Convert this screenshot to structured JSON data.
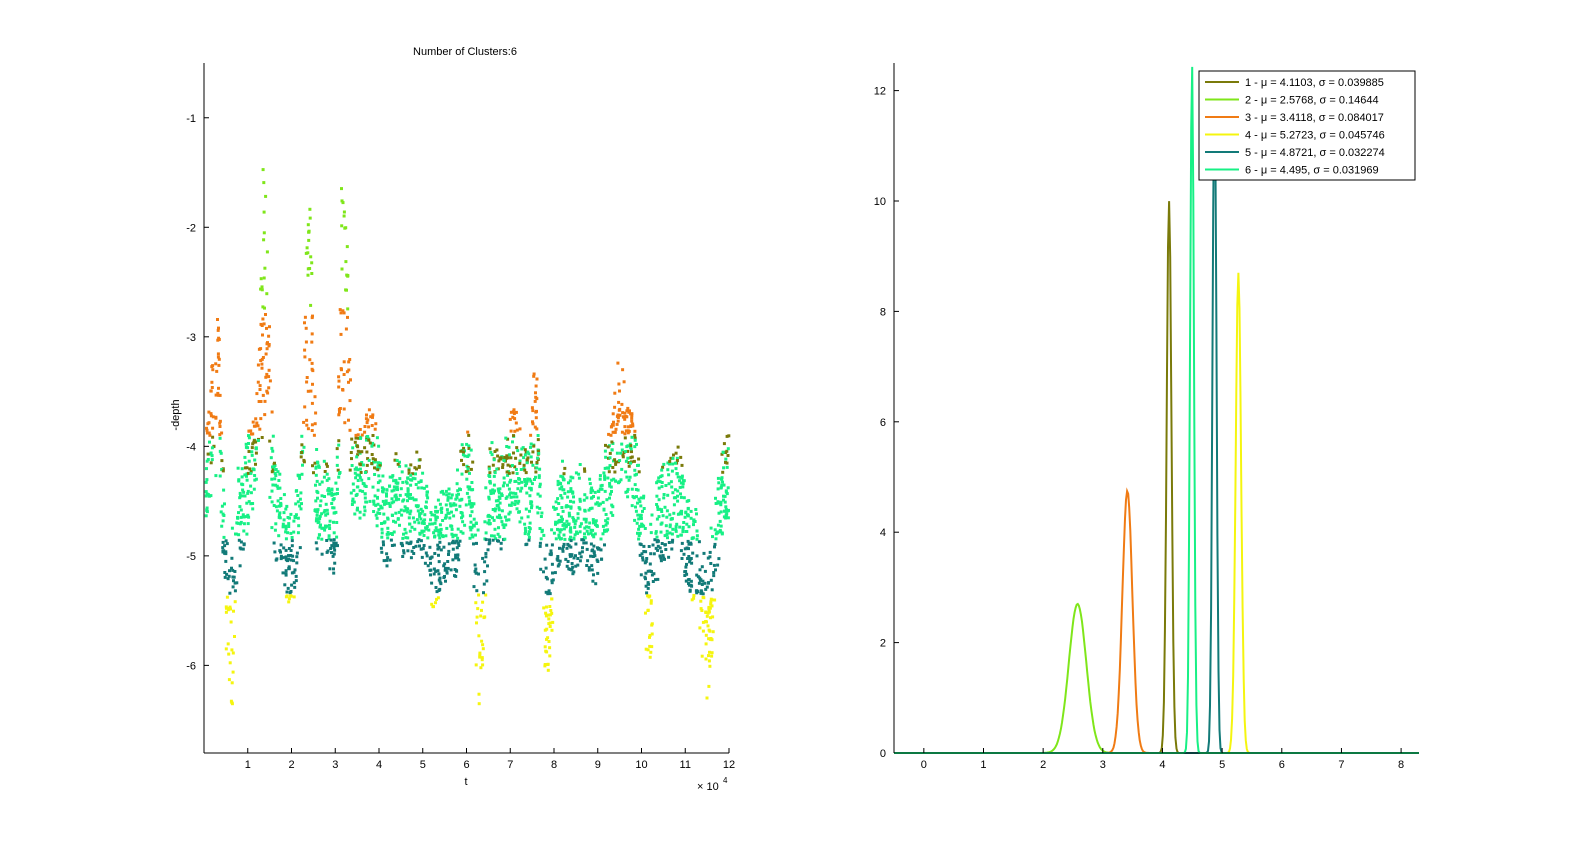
{
  "chart_data": [
    {
      "type": "scatter",
      "title": "Number of Clusters:6",
      "xlabel": "t",
      "ylabel": "-depth",
      "x_multiplier_label": "× 10",
      "x_multiplier_exponent": "4",
      "xlim": [
        0,
        12
      ],
      "ylim": [
        -6.8,
        -0.5
      ],
      "xticks": [
        "1",
        "2",
        "3",
        "4",
        "5",
        "6",
        "7",
        "8",
        "9",
        "10",
        "11",
        "12"
      ],
      "yticks": [
        "-1",
        "-2",
        "-3",
        "-4",
        "-5",
        "-6"
      ],
      "xtick_values": [
        1,
        2,
        3,
        4,
        5,
        6,
        7,
        8,
        9,
        10,
        11,
        12
      ],
      "ytick_values": [
        -1,
        -2,
        -3,
        -4,
        -5,
        -6
      ],
      "cluster_colors": [
        "#7a7a0a",
        "#7fe61a",
        "#f07b14",
        "#f5f50f",
        "#127a78",
        "#17f085"
      ],
      "cluster_bands": [
        {
          "cluster": 1,
          "y_range": [
            -4.3,
            -3.6
          ]
        },
        {
          "cluster": 2,
          "y_range": [
            -2.8,
            -1.1
          ]
        },
        {
          "cluster": 3,
          "y_range": [
            -4.2,
            -2.6
          ]
        },
        {
          "cluster": 4,
          "y_range": [
            -6.3,
            -5.35
          ]
        },
        {
          "cluster": 5,
          "y_range": [
            -5.4,
            -4.6
          ]
        },
        {
          "cluster": 6,
          "y_range": [
            -4.8,
            -4.0
          ]
        }
      ],
      "peaks": [
        {
          "x": 1.4,
          "y": -1.2
        },
        {
          "x": 2.4,
          "y": -1.2
        },
        {
          "x": 3.2,
          "y": -1.1
        },
        {
          "x": 0.3,
          "y": -2.8
        },
        {
          "x": 7.6,
          "y": -3.3
        },
        {
          "x": 9.5,
          "y": -3.3
        }
      ],
      "troughs": [
        {
          "x": 0.6,
          "y": -6.3
        },
        {
          "x": 6.3,
          "y": -6.3
        },
        {
          "x": 7.8,
          "y": -5.9
        },
        {
          "x": 10.2,
          "y": -5.9
        },
        {
          "x": 11.5,
          "y": -6.1
        }
      ]
    },
    {
      "type": "line",
      "xlim": [
        -0.5,
        8.3
      ],
      "ylim": [
        0,
        12.5
      ],
      "xticks": [
        "0",
        "1",
        "2",
        "3",
        "4",
        "5",
        "6",
        "7",
        "8"
      ],
      "yticks": [
        "0",
        "2",
        "4",
        "6",
        "8",
        "10",
        "12"
      ],
      "xtick_values": [
        0,
        1,
        2,
        3,
        4,
        5,
        6,
        7,
        8
      ],
      "ytick_values": [
        0,
        2,
        4,
        6,
        8,
        10,
        12
      ],
      "legend_placement": "top-right",
      "series": [
        {
          "name": "1 - μ = 4.1103, σ = 0.039885",
          "mu": 4.1103,
          "sigma": 0.039885,
          "color": "#7a7a0a"
        },
        {
          "name": "2 - μ = 2.5768, σ = 0.14644",
          "mu": 2.5768,
          "sigma": 0.14644,
          "color": "#7fe61a"
        },
        {
          "name": "3 - μ = 3.4118, σ = 0.084017",
          "mu": 3.4118,
          "sigma": 0.084017,
          "color": "#f07b14"
        },
        {
          "name": "4 - μ = 5.2723, σ = 0.045746",
          "mu": 5.2723,
          "sigma": 0.045746,
          "color": "#f5f50f"
        },
        {
          "name": "5 - μ = 4.8721, σ = 0.032274",
          "mu": 4.8721,
          "sigma": 0.032274,
          "color": "#127a78"
        },
        {
          "name": "6 - μ = 4.495, σ = 0.031969",
          "mu": 4.495,
          "sigma": 0.031969,
          "color": "#17f085"
        }
      ],
      "peak_heights": [
        10.0,
        2.7,
        4.75,
        8.7,
        12.3,
        12.5
      ]
    }
  ]
}
